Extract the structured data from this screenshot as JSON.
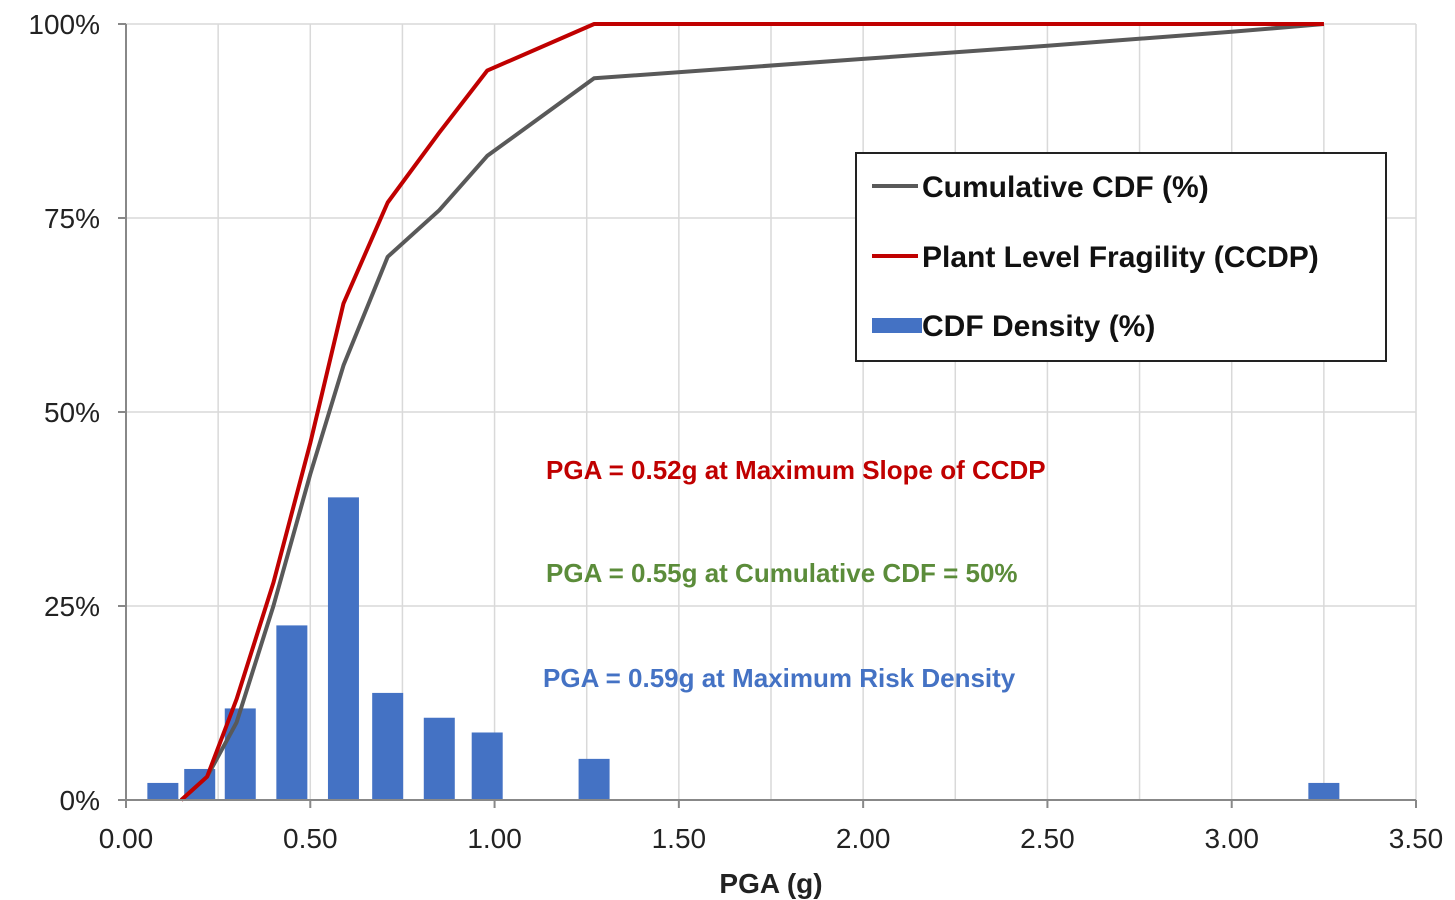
{
  "chart_data": {
    "type": "bar+line",
    "xlabel": "PGA (g)",
    "ylabel": "",
    "xlim": [
      0,
      3.5
    ],
    "ylim": [
      0,
      100
    ],
    "x_ticks": [
      "0.00",
      "0.50",
      "1.00",
      "1.50",
      "2.00",
      "2.50",
      "3.00",
      "3.50"
    ],
    "y_ticks": [
      "0%",
      "25%",
      "50%",
      "75%",
      "100%"
    ],
    "grid": true,
    "legend_position": "top-right",
    "series": [
      {
        "name": "Cumulative CDF (%)",
        "kind": "line",
        "color": "#595959",
        "points": [
          [
            0.15,
            0
          ],
          [
            0.22,
            3
          ],
          [
            0.3,
            10
          ],
          [
            0.4,
            25
          ],
          [
            0.5,
            42
          ],
          [
            0.59,
            56
          ],
          [
            0.71,
            70
          ],
          [
            0.85,
            76
          ],
          [
            0.98,
            83
          ],
          [
            1.27,
            93
          ],
          [
            2.0,
            95.5
          ],
          [
            2.5,
            97.2
          ],
          [
            3.0,
            99
          ],
          [
            3.25,
            100
          ]
        ]
      },
      {
        "name": "Plant Level Fragility (CCDP)",
        "kind": "line",
        "color": "#c00000",
        "points": [
          [
            0.15,
            0
          ],
          [
            0.22,
            3
          ],
          [
            0.3,
            13
          ],
          [
            0.4,
            28
          ],
          [
            0.5,
            46
          ],
          [
            0.59,
            64
          ],
          [
            0.71,
            77
          ],
          [
            0.85,
            86
          ],
          [
            0.98,
            94
          ],
          [
            1.27,
            100
          ],
          [
            3.25,
            100
          ]
        ]
      },
      {
        "name": "CDF Density (%)",
        "kind": "bar",
        "color": "#4472c4",
        "x": [
          0.1,
          0.2,
          0.31,
          0.45,
          0.59,
          0.71,
          0.85,
          0.98,
          1.27,
          3.25
        ],
        "values": [
          2.2,
          4,
          11.8,
          22.5,
          39,
          13.8,
          10.6,
          8.7,
          5.3,
          2.2
        ]
      }
    ],
    "annotations": [
      {
        "text": "PGA = 0.52g at Maximum Slope of CCDP",
        "color": "#c00000"
      },
      {
        "text": "PGA = 0.55g at Cumulative CDF = 50%",
        "color": "#5b8c3a"
      },
      {
        "text": "PGA = 0.59g at Maximum Risk Density",
        "color": "#4472c4"
      }
    ]
  }
}
